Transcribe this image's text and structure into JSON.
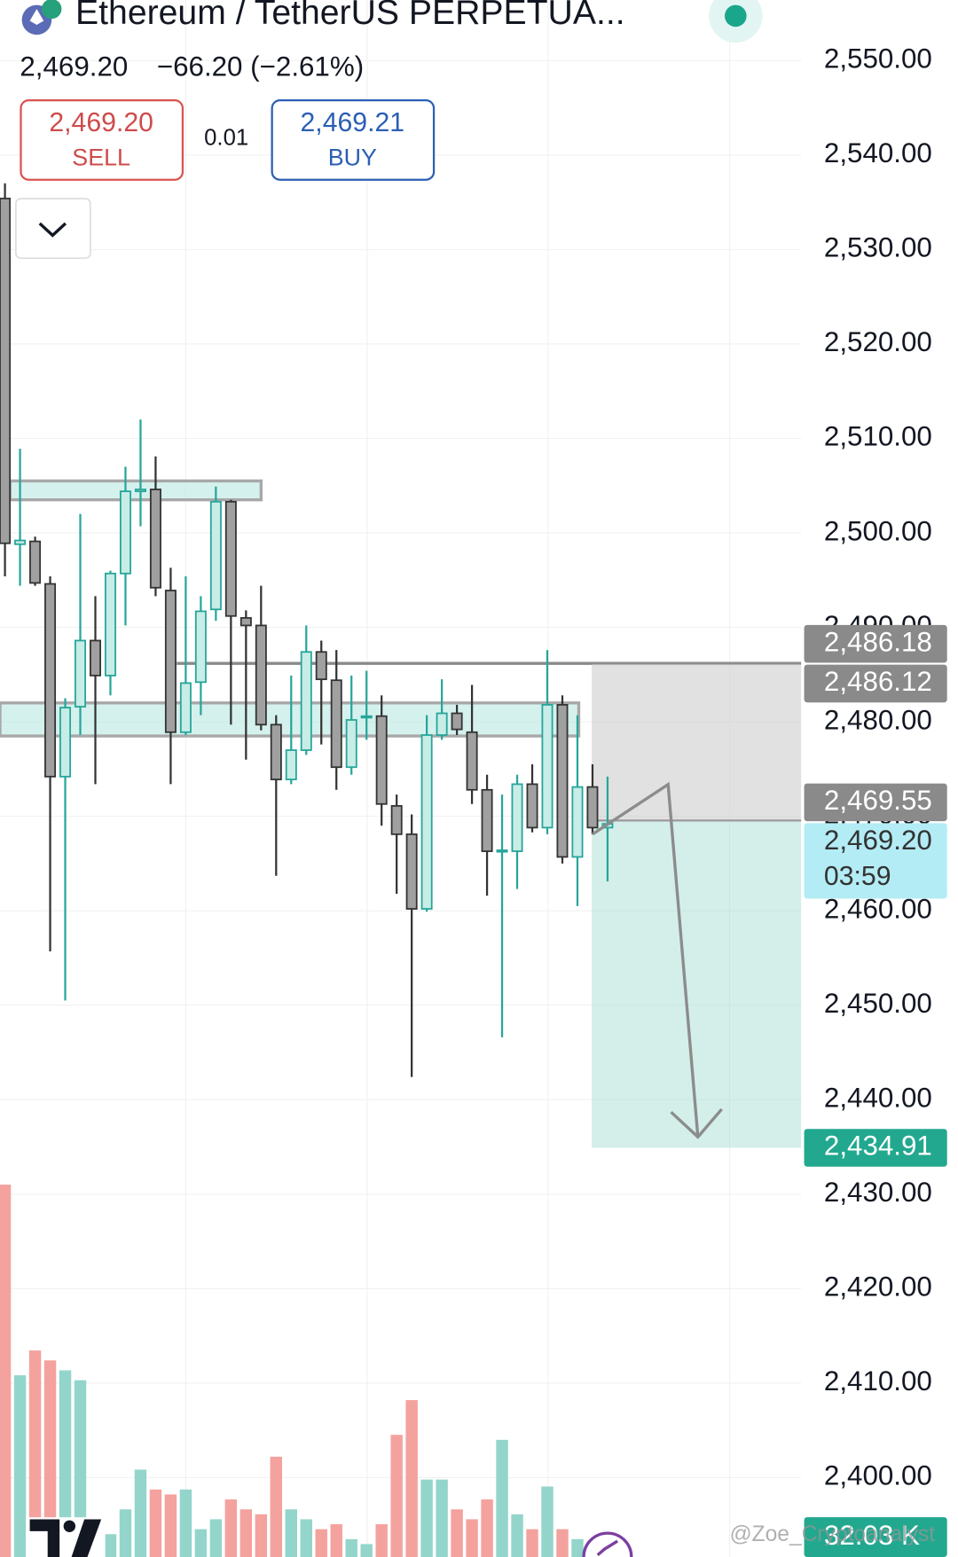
{
  "header": {
    "title": "Ethereum / TetherUS PERPETUA...",
    "price": "2,469.20",
    "change": "−66.20 (−2.61%)",
    "sell_price": "2,469.20",
    "sell_label": "SELL",
    "quantity": "0.01",
    "buy_price": "2,469.21",
    "buy_label": "BUY"
  },
  "chart_data": {
    "type": "candlestick",
    "ylim": [
      2391.59,
      2556.41
    ],
    "yticks": [
      {
        "value": 2550,
        "label": "2,550.00"
      },
      {
        "value": 2540,
        "label": "2,540.00"
      },
      {
        "value": 2530,
        "label": "2,530.00"
      },
      {
        "value": 2520,
        "label": "2,520.00"
      },
      {
        "value": 2510,
        "label": "2,510.00"
      },
      {
        "value": 2500,
        "label": "2,500.00"
      },
      {
        "value": 2490,
        "label": "2,490.00"
      },
      {
        "value": 2480,
        "label": "2,480.00"
      },
      {
        "value": 2470,
        "label": "2,470.00"
      },
      {
        "value": 2460,
        "label": "2,460.00"
      },
      {
        "value": 2450,
        "label": "2,450.00"
      },
      {
        "value": 2440,
        "label": "2,440.00"
      },
      {
        "value": 2430,
        "label": "2,430.00"
      },
      {
        "value": 2420,
        "label": "2,420.00"
      },
      {
        "value": 2410,
        "label": "2,410.00"
      },
      {
        "value": 2400,
        "label": "2,400.00"
      }
    ],
    "grid": true,
    "up_color": "#26a69a",
    "up_fill": "#c8ece6",
    "down_color": "#333333",
    "down_fill": "#a0a0a0",
    "volume_up_color": "#93d5cb",
    "volume_down_color": "#f4a29e",
    "open": [
      2535.4,
      2498.8,
      2499.1,
      2494.6,
      2474.2,
      2481.6,
      2488.6,
      2484.9,
      2495.7,
      2504.4,
      2504.6,
      2493.9,
      2478.9,
      2484.2,
      2491.9,
      2503.3,
      2491.0,
      2490.2,
      2479.7,
      2473.9,
      2477.0,
      2487.4,
      2484.4,
      2475.2,
      2480.5,
      2480.6,
      2471.1,
      2468.1,
      2460.2,
      2478.6,
      2480.9,
      2478.9,
      2472.8,
      2466.3,
      2466.3,
      2473.4,
      2468.8,
      2481.8,
      2465.7,
      2473.1,
      2468.8
    ],
    "high": [
      2537.0,
      2508.9,
      2499.6,
      2495.4,
      2482.5,
      2502.0,
      2493.3,
      2496.0,
      2507.0,
      2512.0,
      2508.1,
      2496.3,
      2495.4,
      2493.3,
      2504.9,
      2503.5,
      2491.8,
      2494.4,
      2480.7,
      2484.9,
      2490.2,
      2488.6,
      2487.6,
      2484.9,
      2485.4,
      2482.8,
      2472.3,
      2470.2,
      2480.7,
      2484.5,
      2481.8,
      2483.9,
      2474.4,
      2472.3,
      2474.4,
      2475.5,
      2487.6,
      2482.8,
      2480.7,
      2475.5,
      2474.2
    ],
    "low": [
      2495.4,
      2494.4,
      2494.4,
      2455.7,
      2450.5,
      2478.6,
      2473.4,
      2482.8,
      2490.2,
      2500.7,
      2493.3,
      2473.4,
      2478.6,
      2480.7,
      2490.7,
      2479.7,
      2476.0,
      2479.1,
      2463.7,
      2473.4,
      2476.5,
      2477.6,
      2472.8,
      2474.4,
      2478.1,
      2469.0,
      2461.8,
      2442.4,
      2459.9,
      2478.1,
      2478.6,
      2471.3,
      2461.6,
      2446.6,
      2462.3,
      2468.3,
      2468.1,
      2465.0,
      2460.5,
      2468.1,
      2463.1
    ],
    "close": [
      2498.9,
      2499.2,
      2494.7,
      2474.2,
      2481.5,
      2488.6,
      2484.9,
      2495.7,
      2504.4,
      2504.6,
      2494.2,
      2478.9,
      2484.1,
      2491.7,
      2503.3,
      2491.2,
      2490.2,
      2479.7,
      2473.9,
      2477.0,
      2487.4,
      2484.5,
      2475.2,
      2480.2,
      2480.6,
      2471.3,
      2468.1,
      2460.2,
      2478.6,
      2480.9,
      2479.2,
      2472.8,
      2466.3,
      2466.4,
      2473.4,
      2468.8,
      2481.8,
      2465.7,
      2473.1,
      2468.8,
      2469.2
    ],
    "volume": [
      387,
      195,
      220,
      210,
      200,
      190,
      40,
      35,
      60,
      100,
      80,
      75,
      80,
      40,
      50,
      70,
      60,
      55,
      113,
      60,
      50,
      40,
      45,
      30,
      25,
      45,
      135,
      170,
      90,
      90,
      60,
      50,
      70,
      130,
      55,
      40,
      83,
      40,
      30,
      25,
      32.03
    ],
    "vlim": [
      0,
      400
    ],
    "volume_tag": {
      "value": 32.03,
      "label": "32.03 K",
      "color": "#22a88f"
    },
    "zones": [
      {
        "low": 2503.5,
        "high": 2505.5
      },
      {
        "low": 2478.5,
        "high": 2482.0
      }
    ],
    "hline": 2486.18,
    "position": {
      "stop": 2486.12,
      "entry": 2469.55,
      "target": 2434.91
    },
    "price_tags": [
      {
        "value": 2486.18,
        "label": "2,486.18",
        "color": "#8a8a8a",
        "text_color": "#ffffff"
      },
      {
        "value": 2486.12,
        "label": "2,486.12",
        "color": "#8a8a8a",
        "text_color": "#ffffff"
      },
      {
        "value": 2469.55,
        "label": "2,469.55",
        "color": "#8a8a8a",
        "text_color": "#ffffff"
      },
      {
        "value": 2469.2,
        "label": "2,469.20",
        "countdown": "03:59",
        "color": "#b3ecf5",
        "text_color": "#333333"
      },
      {
        "value": 2434.91,
        "label": "2,434.91",
        "color": "#22a88f",
        "text_color": "#ffffff"
      }
    ],
    "watermark": "@Zoe_Cryptoanalyst"
  }
}
